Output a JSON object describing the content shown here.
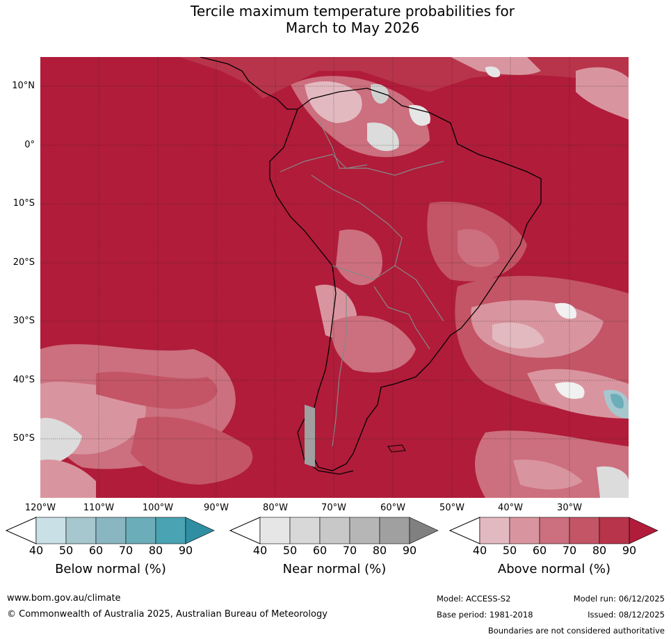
{
  "title": {
    "line1": "Tercile maximum temperature probabilities for",
    "line2": "March to May 2026"
  },
  "map": {
    "latitudes": [
      "10°N",
      "0°",
      "10°S",
      "20°S",
      "30°S",
      "40°S",
      "50°S"
    ],
    "longitudes": [
      "120°W",
      "110°W",
      "100°W",
      "90°W",
      "80°W",
      "70°W",
      "60°W",
      "50°W",
      "40°W",
      "30°W"
    ]
  },
  "legends": [
    {
      "label": "Below normal (%)",
      "ticks": [
        "40",
        "50",
        "60",
        "70",
        "80",
        "90"
      ],
      "colors": [
        "#c9e0e6",
        "#a7c7cf",
        "#8ab6c2",
        "#6baeba",
        "#4aa3b2",
        "#2f8ea2"
      ]
    },
    {
      "label": "Near normal (%)",
      "ticks": [
        "40",
        "50",
        "60",
        "70",
        "80",
        "90"
      ],
      "colors": [
        "#e6e6e6",
        "#d8d8d8",
        "#c8c8c8",
        "#b6b6b6",
        "#a0a0a0",
        "#808080"
      ]
    },
    {
      "label": "Above normal (%)",
      "ticks": [
        "40",
        "50",
        "60",
        "70",
        "80",
        "90"
      ],
      "colors": [
        "#e3b9c0",
        "#d9959f",
        "#cc6f7e",
        "#c35566",
        "#b8344a",
        "#b01c3a"
      ]
    }
  ],
  "footer": {
    "website": "www.bom.gov.au/climate",
    "copyright": "© Commonwealth of Australia 2025, Australian Bureau of Meteorology",
    "model": "Model: ACCESS-S2",
    "model_run": "Model run: 06/12/2025",
    "base_period": "Base period: 1981-2018",
    "issued": "Issued: 08/12/2025",
    "disclaimer": "Boundaries are not considered authoritative"
  }
}
